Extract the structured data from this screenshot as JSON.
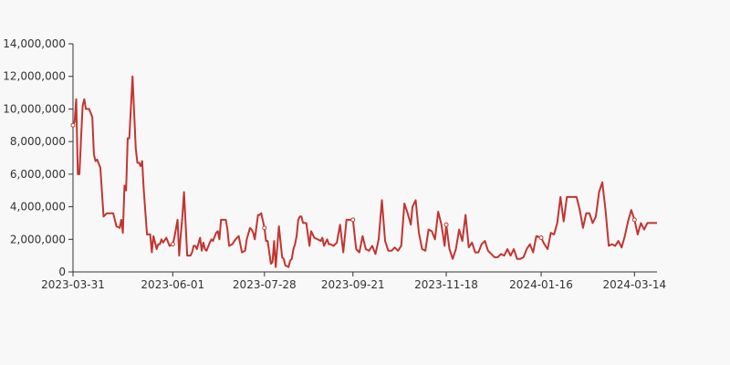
{
  "chart_data": {
    "type": "line",
    "title": "",
    "xlabel": "",
    "ylabel": "",
    "ylim": [
      0,
      14000000
    ],
    "yticks": [
      0,
      2000000,
      4000000,
      6000000,
      8000000,
      10000000,
      12000000,
      14000000
    ],
    "y_tick_labels": [
      "0",
      "2,000,000",
      "4,000,000",
      "6,000,000",
      "8,000,000",
      "10,000,000",
      "12,000,000",
      "14,000,000"
    ],
    "x_range": [
      "2023-03-31",
      "2024-03-28"
    ],
    "x_tick_labels": [
      "2023-03-31",
      "2023-06-01",
      "2023-07-28",
      "2023-09-21",
      "2023-11-18",
      "2024-01-16",
      "2024-03-14"
    ],
    "grid": false,
    "line_color": "#c23531",
    "series": [
      {
        "x": [
          "2023-03-31",
          "2023-04-01",
          "2023-04-02",
          "2023-04-03",
          "2023-04-04",
          "2023-04-05",
          "2023-04-06",
          "2023-04-07",
          "2023-04-08",
          "2023-04-10",
          "2023-04-12",
          "2023-04-13",
          "2023-04-14",
          "2023-04-15",
          "2023-04-17",
          "2023-04-19",
          "2023-04-21",
          "2023-04-23",
          "2023-04-25",
          "2023-04-27",
          "2023-04-29",
          "2023-04-30",
          "2023-05-01",
          "2023-05-02",
          "2023-05-03",
          "2023-05-04",
          "2023-05-05",
          "2023-05-07",
          "2023-05-09",
          "2023-05-10",
          "2023-05-11",
          "2023-05-12",
          "2023-05-13",
          "2023-05-14",
          "2023-05-16",
          "2023-05-18",
          "2023-05-19",
          "2023-05-20",
          "2023-05-21",
          "2023-05-22",
          "2023-05-23",
          "2023-05-24",
          "2023-05-25",
          "2023-05-26",
          "2023-05-28",
          "2023-05-30",
          "2023-06-01",
          "2023-06-02",
          "2023-06-04",
          "2023-06-05",
          "2023-06-06",
          "2023-06-07",
          "2023-06-08",
          "2023-06-10",
          "2023-06-12",
          "2023-06-13",
          "2023-06-14",
          "2023-06-15",
          "2023-06-16",
          "2023-06-18",
          "2023-06-19",
          "2023-06-20",
          "2023-06-21",
          "2023-06-22",
          "2023-06-24",
          "2023-06-25",
          "2023-06-26",
          "2023-06-28",
          "2023-06-29",
          "2023-06-30",
          "2023-07-01",
          "2023-07-02",
          "2023-07-04",
          "2023-07-05",
          "2023-07-06",
          "2023-07-08",
          "2023-07-10",
          "2023-07-12",
          "2023-07-14",
          "2023-07-16",
          "2023-07-17",
          "2023-07-19",
          "2023-07-20",
          "2023-07-21",
          "2023-07-22",
          "2023-07-24",
          "2023-07-25",
          "2023-07-26",
          "2023-07-28",
          "2023-07-29",
          "2023-07-30",
          "2023-08-01",
          "2023-08-02",
          "2023-08-03",
          "2023-08-04",
          "2023-08-06",
          "2023-08-08",
          "2023-08-09",
          "2023-08-10",
          "2023-08-12",
          "2023-08-13",
          "2023-08-14",
          "2023-08-15",
          "2023-08-16",
          "2023-08-17",
          "2023-08-18",
          "2023-08-19",
          "2023-08-20",
          "2023-08-21",
          "2023-08-22",
          "2023-08-23",
          "2023-08-25",
          "2023-08-26",
          "2023-08-28",
          "2023-08-30",
          "2023-09-01",
          "2023-09-02",
          "2023-09-03",
          "2023-09-05",
          "2023-09-06",
          "2023-09-07",
          "2023-09-09",
          "2023-09-11",
          "2023-09-13",
          "2023-09-15",
          "2023-09-17",
          "2023-09-19",
          "2023-09-21",
          "2023-09-23",
          "2023-09-25",
          "2023-09-27",
          "2023-09-29",
          "2023-10-01",
          "2023-10-03",
          "2023-10-05",
          "2023-10-07",
          "2023-10-09",
          "2023-10-11",
          "2023-10-13",
          "2023-10-15",
          "2023-10-17",
          "2023-10-19",
          "2023-10-21",
          "2023-10-23",
          "2023-10-25",
          "2023-10-27",
          "2023-10-28",
          "2023-10-30",
          "2023-11-01",
          "2023-11-03",
          "2023-11-05",
          "2023-11-07",
          "2023-11-09",
          "2023-11-11",
          "2023-11-13",
          "2023-11-15",
          "2023-11-17",
          "2023-11-18",
          "2023-11-20",
          "2023-11-22",
          "2023-11-24",
          "2023-11-26",
          "2023-11-28",
          "2023-11-30",
          "2023-12-02",
          "2023-12-04",
          "2023-12-06",
          "2023-12-08",
          "2023-12-10",
          "2023-12-12",
          "2023-12-14",
          "2023-12-16",
          "2023-12-18",
          "2023-12-20",
          "2023-12-22",
          "2023-12-24",
          "2023-12-26",
          "2023-12-28",
          "2023-12-30",
          "2024-01-01",
          "2024-01-03",
          "2024-01-05",
          "2024-01-07",
          "2024-01-09",
          "2024-01-11",
          "2024-01-13",
          "2024-01-16",
          "2024-01-18",
          "2024-01-20",
          "2024-01-22",
          "2024-01-24",
          "2024-01-26",
          "2024-01-28",
          "2024-01-30",
          "2024-02-01",
          "2024-02-03",
          "2024-02-05",
          "2024-02-07",
          "2024-02-09",
          "2024-02-11",
          "2024-02-13",
          "2024-02-15",
          "2024-02-17",
          "2024-02-19",
          "2024-02-21",
          "2024-02-23",
          "2024-02-25",
          "2024-02-27",
          "2024-02-29",
          "2024-03-02",
          "2024-03-04",
          "2024-03-06",
          "2024-03-08",
          "2024-03-10",
          "2024-03-12",
          "2024-03-14",
          "2024-03-16",
          "2024-03-18",
          "2024-03-20",
          "2024-03-22",
          "2024-03-24",
          "2024-03-26",
          "2024-03-28"
        ],
        "values": [
          9000000,
          9200000,
          10600000,
          6000000,
          6000000,
          8200000,
          10200000,
          10600000,
          10000000,
          10000000,
          9500000,
          7200000,
          6800000,
          6900000,
          6400000,
          3400000,
          3600000,
          3600000,
          3600000,
          2800000,
          2700000,
          3200000,
          2400000,
          5300000,
          5000000,
          8200000,
          8200000,
          12000000,
          7600000,
          6700000,
          6700000,
          6500000,
          6800000,
          5000000,
          2300000,
          2300000,
          1200000,
          2200000,
          1800000,
          1400000,
          1700000,
          1700000,
          2000000,
          1800000,
          2100000,
          1600000,
          1700000,
          2100000,
          3200000,
          1000000,
          2300000,
          3400000,
          4900000,
          1000000,
          1000000,
          1200000,
          1600000,
          1600000,
          1400000,
          2100000,
          1300000,
          1800000,
          1400000,
          1300000,
          1800000,
          2000000,
          1900000,
          2400000,
          2500000,
          2000000,
          3200000,
          3200000,
          3200000,
          2600000,
          1600000,
          1700000,
          2000000,
          2200000,
          1200000,
          1300000,
          2000000,
          2700000,
          2600000,
          2400000,
          2000000,
          3500000,
          3500000,
          3600000,
          2700000,
          1900000,
          1900000,
          500000,
          600000,
          1900000,
          300000,
          2800000,
          900000,
          800000,
          400000,
          300000,
          700000,
          800000,
          1400000,
          1700000,
          2200000,
          3200000,
          3400000,
          3400000,
          3000000,
          3000000,
          3000000,
          1600000,
          2500000,
          2100000,
          2000000,
          1900000,
          2100000,
          1600000,
          2000000,
          1700000,
          1700000,
          1600000,
          1800000,
          2900000,
          1200000,
          3200000,
          3200000,
          3200000,
          1400000,
          1200000,
          2200000,
          1400000,
          1300000,
          1600000,
          1100000,
          2000000,
          4400000,
          1900000,
          1300000,
          1300000,
          1500000,
          1300000,
          1600000,
          4200000,
          3600000,
          2900000,
          4000000,
          4400000,
          2400000,
          1400000,
          1300000,
          2600000,
          2500000,
          2000000,
          3700000,
          2900000,
          1600000,
          2900000,
          1400000,
          800000,
          1400000,
          2600000,
          1900000,
          3500000,
          1500000,
          1800000,
          1200000,
          1200000,
          1700000,
          1900000,
          1300000,
          1100000,
          900000,
          900000,
          1100000,
          1000000,
          1400000,
          1000000,
          1400000,
          800000,
          800000,
          900000,
          1400000,
          1700000,
          1200000,
          2200000,
          2100000,
          1700000,
          1400000,
          2400000,
          2300000,
          3000000,
          4600000,
          3100000,
          4600000,
          4600000,
          4600000,
          4600000,
          3800000,
          2700000,
          3600000,
          3600000,
          3000000,
          3400000,
          4900000,
          5500000,
          3800000,
          1600000,
          1700000,
          1600000,
          1900000,
          1500000,
          2200000,
          3100000,
          3800000,
          3200000,
          2300000,
          3000000,
          2600000,
          3000000,
          3000000,
          3000000,
          3000000
        ]
      }
    ]
  }
}
